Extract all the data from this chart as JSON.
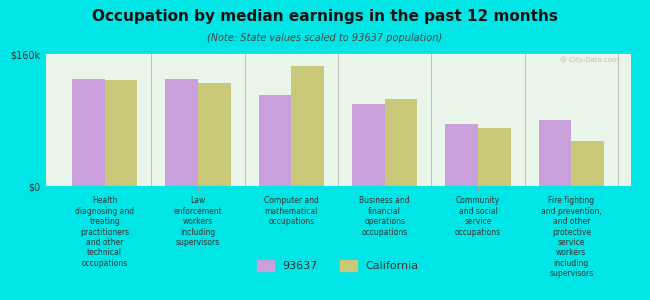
{
  "title": "Occupation by median earnings in the past 12 months",
  "subtitle": "(Note: State values scaled to 93637 population)",
  "background_color": "#00e5e5",
  "plot_bg_color": "#e8f5e8",
  "categories": [
    "Health\ndiagnosing and\ntreating\npractitioners\nand other\ntechnical\noccupations",
    "Law\nenforcement\nworkers\nincluding\nsupervisors",
    "Computer and\nmathematical\noccupations",
    "Business and\nfinancial\noperations\noccupations",
    "Community\nand social\nservice\noccupations",
    "Fire fighting\nand prevention,\nand other\nprotective\nservice\nworkers\nincluding\nsupervisors"
  ],
  "values_93637": [
    130000,
    130000,
    110000,
    100000,
    75000,
    80000
  ],
  "values_california": [
    128000,
    125000,
    145000,
    105000,
    70000,
    55000
  ],
  "ylim": [
    0,
    160000
  ],
  "yticks": [
    0,
    160000
  ],
  "ytick_labels": [
    "$0",
    "$160k"
  ],
  "color_93637": "#c9a0dc",
  "color_california": "#c8c878",
  "legend_93637": "93637",
  "legend_california": "California",
  "bar_width": 0.35
}
